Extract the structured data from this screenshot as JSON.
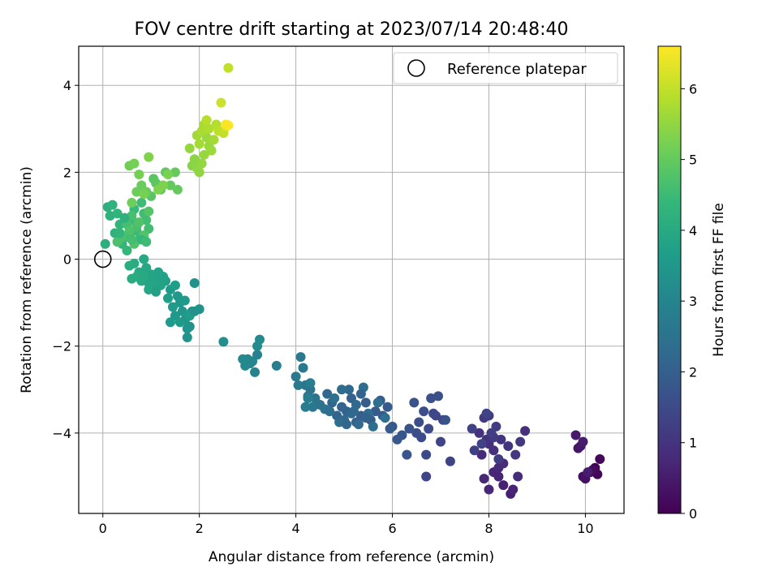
{
  "chart_data": {
    "type": "scatter",
    "title": "FOV centre drift starting at 2023/07/14 20:48:40",
    "xlabel": "Angular distance from reference (arcmin)",
    "ylabel": "Rotation from reference (arcmin)",
    "xlim": [
      -0.5,
      10.8
    ],
    "ylim": [
      -5.85,
      4.9
    ],
    "xticks": [
      0,
      2,
      4,
      6,
      8,
      10
    ],
    "yticks": [
      -4,
      -2,
      0,
      2,
      4
    ],
    "xtick_labels": [
      "0",
      "2",
      "4",
      "6",
      "8",
      "10"
    ],
    "ytick_labels": [
      "−4",
      "−2",
      "0",
      "2",
      "4"
    ],
    "grid": true,
    "legend": {
      "position": "top-right",
      "entries": [
        "Reference platepar"
      ]
    },
    "reference_point": {
      "x": 0,
      "y": 0,
      "marker": "open-circle"
    },
    "colorbar": {
      "label": "Hours from first FF file",
      "colormap": "viridis",
      "range": [
        0,
        6.6
      ],
      "ticks": [
        0,
        1,
        2,
        3,
        4,
        5,
        6
      ],
      "tick_labels": [
        "0",
        "1",
        "2",
        "3",
        "4",
        "5",
        "6"
      ]
    },
    "colormap_stops": [
      "#440154",
      "#482878",
      "#3e4989",
      "#31688e",
      "#26828e",
      "#1f9e89",
      "#35b779",
      "#6ece58",
      "#b5de2b",
      "#fde725"
    ],
    "series": [
      {
        "x": [
          10.1,
          10.2,
          10.25,
          10.3,
          10.15,
          9.95,
          10.0,
          9.85,
          9.9,
          9.8,
          9.95,
          10.05
        ],
        "y": [
          -4.9,
          -4.8,
          -4.95,
          -4.6,
          -4.85,
          -5.0,
          -5.05,
          -4.35,
          -4.3,
          -4.05,
          -4.2,
          -4.9
        ],
        "t": [
          0.0,
          0.05,
          0.1,
          0.15,
          0.2,
          0.25,
          0.3,
          0.35,
          0.4,
          0.45,
          0.5,
          0.55
        ]
      },
      {
        "x": [
          8.45,
          8.3,
          8.5,
          8.2,
          8.1,
          8.0,
          7.9,
          7.85,
          8.2,
          8.3,
          8.6,
          8.75,
          8.0,
          8.1,
          7.95,
          7.8,
          8.25,
          8.4,
          8.55,
          8.65,
          8.0,
          7.9,
          8.1,
          8.2,
          8.15,
          8.05,
          7.7,
          7.65,
          7.85,
          7.95
        ],
        "y": [
          -5.4,
          -5.2,
          -5.3,
          -5.0,
          -4.9,
          -5.3,
          -5.05,
          -4.5,
          -4.8,
          -4.7,
          -5.0,
          -3.95,
          -4.25,
          -4.4,
          -4.15,
          -4.0,
          -4.15,
          -4.3,
          -4.5,
          -4.2,
          -3.6,
          -3.65,
          -4.1,
          -4.6,
          -3.85,
          -4.0,
          -4.4,
          -3.9,
          -4.25,
          -3.55
        ],
        "t": [
          0.6,
          0.62,
          0.65,
          0.68,
          0.7,
          0.72,
          0.75,
          0.78,
          0.8,
          0.82,
          0.85,
          0.88,
          0.9,
          0.92,
          0.95,
          0.98,
          1.0,
          1.02,
          1.05,
          1.08,
          1.1,
          1.12,
          1.15,
          1.18,
          1.2,
          1.22,
          1.25,
          1.28,
          1.3,
          1.32
        ]
      },
      {
        "x": [
          7.2,
          7.0,
          6.9,
          7.05,
          6.85,
          6.75,
          6.7,
          6.6,
          6.5,
          6.55,
          6.65,
          6.8,
          6.95,
          7.1,
          6.45,
          6.35,
          6.3,
          6.2,
          6.1,
          6.0,
          6.7
        ],
        "y": [
          -4.65,
          -4.2,
          -3.6,
          -3.7,
          -3.55,
          -3.9,
          -4.5,
          -4.1,
          -4.0,
          -3.75,
          -3.5,
          -3.2,
          -3.15,
          -3.7,
          -3.3,
          -3.9,
          -4.5,
          -4.05,
          -4.15,
          -3.85,
          -5.0
        ],
        "t": [
          1.35,
          1.38,
          1.4,
          1.42,
          1.45,
          1.48,
          1.5,
          1.52,
          1.55,
          1.58,
          1.6,
          1.62,
          1.65,
          1.68,
          1.7,
          1.72,
          1.75,
          1.78,
          1.8,
          1.82,
          1.4
        ]
      },
      {
        "x": [
          5.9,
          5.8,
          5.75,
          5.65,
          5.55,
          5.45,
          5.35,
          5.25,
          5.15,
          5.05,
          4.95,
          4.85,
          4.75,
          4.65,
          5.0,
          5.1,
          5.2,
          5.3,
          5.4,
          5.5,
          4.9,
          5.6,
          5.7,
          5.85,
          4.8,
          4.6,
          4.5,
          4.4,
          4.3,
          4.2,
          4.25,
          4.35,
          5.95,
          5.35,
          5.15,
          4.95,
          5.05,
          5.25,
          5.45,
          4.7
        ],
        "y": [
          -3.4,
          -3.6,
          -3.25,
          -3.5,
          -3.7,
          -3.3,
          -3.6,
          -3.75,
          -3.2,
          -3.5,
          -3.4,
          -3.6,
          -3.3,
          -3.1,
          -3.7,
          -3.0,
          -3.5,
          -3.8,
          -2.95,
          -3.55,
          -3.75,
          -3.85,
          -3.3,
          -3.65,
          -3.2,
          -3.45,
          -3.35,
          -3.2,
          -3.0,
          -2.9,
          -3.15,
          -3.4,
          -3.9,
          -3.1,
          -3.55,
          -3.0,
          -3.8,
          -3.35,
          -3.65,
          -3.5
        ],
        "t": [
          1.85,
          1.87,
          1.9,
          1.92,
          1.95,
          1.97,
          2.0,
          2.02,
          2.05,
          2.07,
          2.1,
          2.12,
          2.15,
          2.17,
          2.2,
          2.22,
          2.25,
          2.27,
          2.3,
          2.32,
          2.35,
          2.37,
          2.4,
          2.42,
          2.45,
          2.47,
          2.5,
          2.52,
          2.55,
          2.57,
          2.6,
          2.62,
          1.9,
          2.1,
          2.2,
          2.3,
          2.15,
          2.25,
          2.05,
          2.4
        ]
      },
      {
        "x": [
          4.15,
          4.1,
          4.05,
          4.0,
          4.2,
          4.3,
          4.25,
          3.6,
          3.2,
          3.15,
          3.1,
          3.05,
          3.0,
          2.95,
          2.9,
          3.25,
          3.2,
          2.5
        ],
        "y": [
          -2.5,
          -2.25,
          -2.9,
          -2.7,
          -3.4,
          -2.85,
          -3.2,
          -2.45,
          -2.2,
          -2.6,
          -2.35,
          -2.4,
          -2.3,
          -2.45,
          -2.3,
          -1.85,
          -2.0,
          -1.9
        ],
        "t": [
          2.65,
          2.68,
          2.7,
          2.72,
          2.75,
          2.78,
          2.8,
          2.85,
          2.9,
          2.95,
          3.0,
          3.02,
          3.05,
          3.08,
          3.1,
          3.15,
          3.18,
          3.25
        ]
      },
      {
        "x": [
          1.85,
          1.8,
          1.9,
          2.0,
          1.75,
          1.7,
          1.65,
          1.6,
          1.55,
          1.5,
          1.45,
          1.4,
          1.6,
          1.7,
          1.8,
          1.5,
          1.35,
          1.3,
          1.25,
          1.2,
          1.15,
          1.1,
          1.05,
          1.0,
          0.95,
          0.9,
          0.85,
          0.8,
          0.75,
          0.7,
          0.65,
          0.6,
          0.55,
          1.9,
          1.75,
          1.4,
          1.1,
          0.95,
          0.85
        ],
        "y": [
          -1.2,
          -1.55,
          -0.55,
          -1.15,
          -1.8,
          -1.4,
          -1.2,
          -1.0,
          -0.85,
          -1.3,
          -1.1,
          -0.7,
          -1.45,
          -0.95,
          -1.3,
          -0.6,
          -0.9,
          -0.5,
          -0.4,
          -0.6,
          -0.3,
          -0.5,
          -0.65,
          -0.35,
          -0.7,
          -0.2,
          0.0,
          -0.5,
          -0.3,
          -0.4,
          -0.1,
          -0.45,
          -0.15,
          -1.2,
          -1.6,
          -1.45,
          -0.75,
          -0.55,
          -0.4
        ],
        "t": [
          3.3,
          3.32,
          3.35,
          3.38,
          3.4,
          3.42,
          3.45,
          3.48,
          3.5,
          3.52,
          3.55,
          3.58,
          3.6,
          3.62,
          3.65,
          3.68,
          3.7,
          3.72,
          3.75,
          3.78,
          3.8,
          3.82,
          3.85,
          3.88,
          3.9,
          3.92,
          3.95,
          3.98,
          4.0,
          4.02,
          4.05,
          4.08,
          4.1,
          3.36,
          3.44,
          3.56,
          3.76,
          3.86,
          3.96
        ]
      },
      {
        "x": [
          0.05,
          0.1,
          0.15,
          0.2,
          0.25,
          0.3,
          0.35,
          0.4,
          0.45,
          0.5,
          0.55,
          0.6,
          0.65,
          0.7,
          0.75,
          0.8,
          0.85,
          0.9,
          0.95,
          0.5,
          0.6,
          0.7,
          0.4,
          0.3,
          0.55,
          0.65,
          0.75,
          0.85,
          0.95,
          0.45,
          0.35,
          0.8,
          0.9,
          0.6
        ],
        "y": [
          0.35,
          1.2,
          1.0,
          1.25,
          0.6,
          1.05,
          0.8,
          0.35,
          0.5,
          0.2,
          0.55,
          0.9,
          1.15,
          0.65,
          0.45,
          1.3,
          1.05,
          0.9,
          0.7,
          0.8,
          1.0,
          0.75,
          0.5,
          0.4,
          0.65,
          0.35,
          0.85,
          0.55,
          1.1,
          0.95,
          0.6,
          0.45,
          0.4,
          0.45
        ],
        "t": [
          4.15,
          4.18,
          4.2,
          4.22,
          4.25,
          4.28,
          4.3,
          4.32,
          4.35,
          4.38,
          4.4,
          4.42,
          4.45,
          4.48,
          4.5,
          4.52,
          4.55,
          4.58,
          4.6,
          4.62,
          4.64,
          4.66,
          4.68,
          4.7,
          4.72,
          4.74,
          4.76,
          4.78,
          4.8,
          4.2,
          4.3,
          4.4,
          4.5,
          4.6
        ]
      },
      {
        "x": [
          1.0,
          1.05,
          1.1,
          1.2,
          1.3,
          1.4,
          1.5,
          1.55,
          0.9,
          0.8,
          0.7,
          0.6,
          0.55,
          0.65,
          0.75,
          0.85,
          1.35,
          1.25,
          1.15,
          0.95
        ],
        "y": [
          1.45,
          1.85,
          1.75,
          1.6,
          2.0,
          1.7,
          2.0,
          1.6,
          1.55,
          1.7,
          1.55,
          1.3,
          2.15,
          2.2,
          1.95,
          1.5,
          1.95,
          1.7,
          1.6,
          2.35
        ],
        "t": [
          4.85,
          4.88,
          4.9,
          4.92,
          4.95,
          4.98,
          5.0,
          5.02,
          5.05,
          5.08,
          5.1,
          5.12,
          5.15,
          5.18,
          5.2,
          5.22,
          5.25,
          5.28,
          5.3,
          5.32
        ]
      },
      {
        "x": [
          1.85,
          1.9,
          1.95,
          2.0,
          2.05,
          1.8,
          2.1,
          2.2,
          2.15,
          2.25,
          1.95,
          2.0,
          2.3,
          2.1,
          2.05,
          2.2,
          2.35,
          2.15,
          2.4,
          2.5,
          2.45,
          2.55,
          2.6
        ],
        "y": [
          2.15,
          2.3,
          2.1,
          2.0,
          2.2,
          2.55,
          2.4,
          2.6,
          2.8,
          2.5,
          2.85,
          2.65,
          2.75,
          3.1,
          2.95,
          3.0,
          3.1,
          3.2,
          2.95,
          2.9,
          3.6,
          3.05,
          4.4
        ],
        "t": [
          5.4,
          5.42,
          5.45,
          5.48,
          5.5,
          5.52,
          5.55,
          5.58,
          5.6,
          5.62,
          5.65,
          5.68,
          5.7,
          5.72,
          5.75,
          5.8,
          5.85,
          5.9,
          5.95,
          6.0,
          6.1,
          6.2,
          6.0
        ]
      },
      {
        "x": [
          2.6,
          2.55
        ],
        "y": [
          3.08,
          3.1
        ],
        "t": [
          6.6,
          6.55
        ]
      }
    ]
  }
}
